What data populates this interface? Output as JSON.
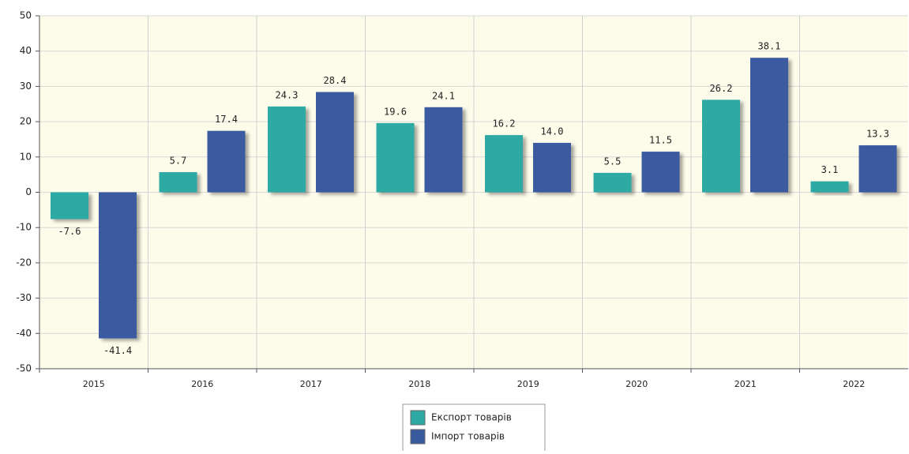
{
  "chart_data": {
    "type": "bar",
    "categories": [
      "2015",
      "2016",
      "2017",
      "2018",
      "2019",
      "2020",
      "2021",
      "2022"
    ],
    "series": [
      {
        "name": "Експорт товарів",
        "color": "#2eaaa5",
        "values": [
          -7.6,
          5.7,
          24.3,
          19.6,
          16.2,
          5.5,
          26.2,
          3.1
        ],
        "value_labels": [
          "-7.6",
          "5.7",
          "24.3",
          "19.6",
          "16.2",
          "5.5",
          "26.2",
          "3.1"
        ]
      },
      {
        "name": "Імпорт товарів",
        "color": "#3a5a9f",
        "values": [
          -41.4,
          17.4,
          28.4,
          24.1,
          14.0,
          11.5,
          38.1,
          13.3
        ],
        "value_labels": [
          "-41.4",
          "17.4",
          "28.4",
          "24.1",
          "14.0",
          "11.5",
          "38.1",
          "13.3"
        ]
      }
    ],
    "ylim": [
      -50,
      50
    ],
    "yticks": [
      -50,
      -40,
      -30,
      -20,
      -10,
      0,
      10,
      20,
      30,
      40,
      50
    ],
    "grid": true,
    "legend": "bottom"
  }
}
